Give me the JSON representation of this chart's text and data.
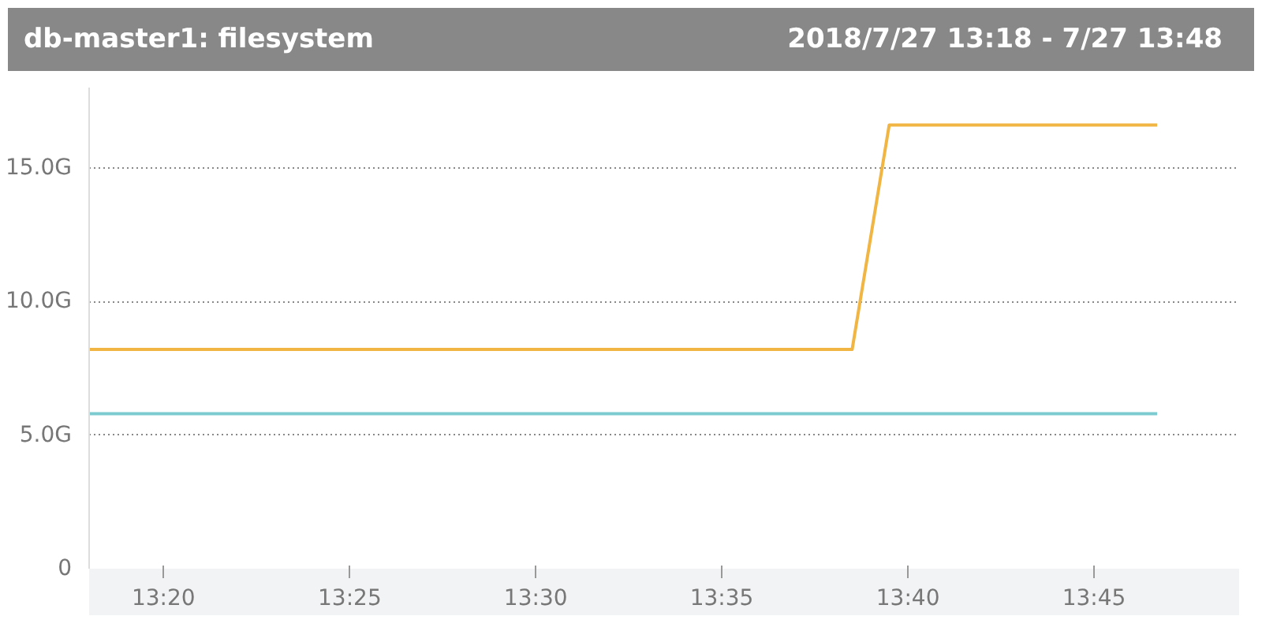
{
  "chart_data": {
    "type": "line",
    "title": "db-master1: filesystem",
    "subtitle": "2018/7/27 13:18 - 7/27 13:48",
    "series": [
      {
        "color": "#f0b542",
        "x": [
          13.3,
          13.6417,
          13.6583,
          13.7783
        ],
        "values": [
          8.2,
          8.2,
          16.6,
          16.6
        ]
      },
      {
        "color": "#7ccbd1",
        "x": [
          13.3,
          13.7783
        ],
        "values": [
          5.8,
          5.8
        ]
      }
    ],
    "xlim": [
      13.3,
      13.815
    ],
    "xticks": [
      {
        "value": 13.3333,
        "label": "13:20"
      },
      {
        "value": 13.4167,
        "label": "13:25"
      },
      {
        "value": 13.5,
        "label": "13:30"
      },
      {
        "value": 13.5833,
        "label": "13:35"
      },
      {
        "value": 13.6667,
        "label": "13:40"
      },
      {
        "value": 13.75,
        "label": "13:45"
      }
    ],
    "ylim": [
      0,
      18
    ],
    "yticks": [
      {
        "value": 0,
        "label": "0"
      },
      {
        "value": 5,
        "label": "5.0G"
      },
      {
        "value": 10,
        "label": "10.0G"
      },
      {
        "value": 15,
        "label": "15.0G"
      }
    ],
    "grid": "y",
    "marker": "none",
    "line_style": "solid"
  }
}
